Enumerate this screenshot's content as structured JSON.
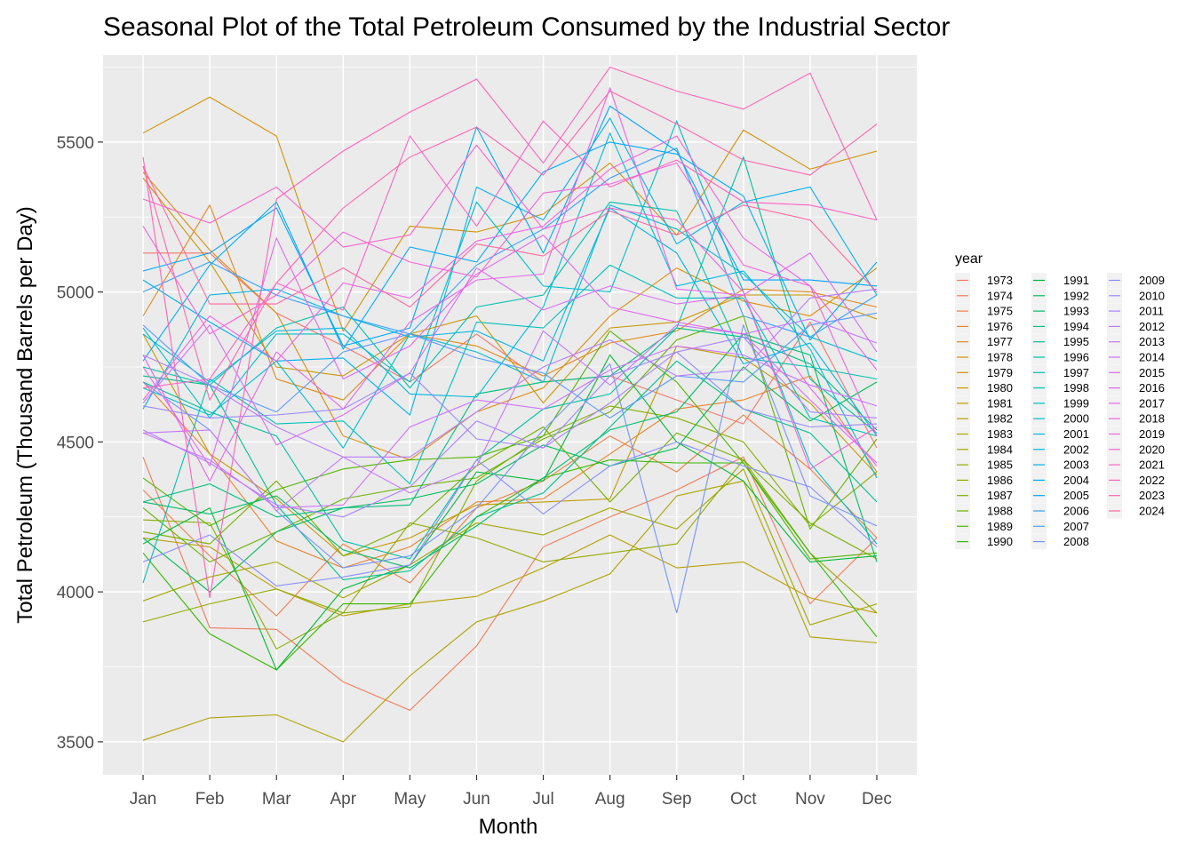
{
  "chart_data": {
    "type": "line",
    "title": "Seasonal Plot of the Total Petroleum Consumed by the Industrial Sector",
    "xlabel": "Month",
    "ylabel": "Total Petroleum (Thousand Barrels per Day)",
    "categories": [
      "Jan",
      "Feb",
      "Mar",
      "Apr",
      "May",
      "Jun",
      "Jul",
      "Aug",
      "Sep",
      "Oct",
      "Nov",
      "Dec"
    ],
    "ylim": [
      3390,
      5790
    ],
    "yticks": [
      3500,
      4000,
      4500,
      5000,
      5500
    ],
    "legend_title": "year",
    "legend_position": "right",
    "grid": true,
    "panel_background": "#ebebeb",
    "series": [
      {
        "name": "1973",
        "color": "#f8766d",
        "values": [
          5130,
          5130,
          4930,
          4820,
          4700,
          4860,
          4700,
          4720,
          4640,
          4560,
          4900,
          4480
        ]
      },
      {
        "name": "1974",
        "color": "#f47a58",
        "values": [
          4450,
          3880,
          3875,
          3700,
          3605,
          3820,
          4150,
          4250,
          4340,
          4450,
          3960,
          4180
        ]
      },
      {
        "name": "1975",
        "color": "#ef7f46",
        "values": [
          4340,
          4120,
          3920,
          4160,
          4030,
          4280,
          4370,
          4520,
          4400,
          4590,
          4410,
          4180
        ]
      },
      {
        "name": "1976",
        "color": "#e9842d",
        "values": [
          4700,
          4460,
          4170,
          4080,
          4150,
          4300,
          4310,
          4460,
          4610,
          4640,
          4720,
          4400
        ]
      },
      {
        "name": "1977",
        "color": "#e3891c",
        "values": [
          4920,
          5290,
          4710,
          4640,
          4860,
          4820,
          4720,
          4830,
          4870,
          5010,
          5000,
          4950
        ]
      },
      {
        "name": "1978",
        "color": "#dc8e0e",
        "values": [
          5400,
          5140,
          4930,
          4520,
          4440,
          4600,
          4680,
          4920,
          5080,
          4970,
          4920,
          5080
        ]
      },
      {
        "name": "1979",
        "color": "#d49205",
        "values": [
          5530,
          5650,
          5520,
          4870,
          5220,
          5200,
          5260,
          5430,
          5190,
          5540,
          5410,
          5470
        ]
      },
      {
        "name": "1980",
        "color": "#cb9700",
        "values": [
          5380,
          5100,
          4750,
          4720,
          4860,
          4920,
          4630,
          4880,
          4900,
          4990,
          4990,
          4910
        ]
      },
      {
        "name": "1981",
        "color": "#c29b00",
        "values": [
          4860,
          4460,
          4310,
          4120,
          4180,
          4290,
          4300,
          4310,
          4820,
          4780,
          4630,
          4390
        ]
      },
      {
        "name": "1982",
        "color": "#b89f00",
        "values": [
          4180,
          4150,
          4010,
          3920,
          3960,
          3985,
          4080,
          4190,
          4080,
          4100,
          3980,
          3930
        ]
      },
      {
        "name": "1983",
        "color": "#ada300",
        "values": [
          3505,
          3580,
          3590,
          3500,
          3720,
          3900,
          3970,
          4060,
          4320,
          4370,
          3850,
          3830
        ]
      },
      {
        "name": "1984",
        "color": "#a2a600",
        "values": [
          3970,
          4050,
          4100,
          3980,
          4090,
          4230,
          4190,
          4280,
          4210,
          4410,
          3890,
          3960
        ]
      },
      {
        "name": "1985",
        "color": "#95aa00",
        "values": [
          3900,
          3960,
          4010,
          3930,
          4230,
          4180,
          4100,
          4130,
          4160,
          4440,
          4130,
          3930
        ]
      },
      {
        "name": "1986",
        "color": "#88ad00",
        "values": [
          4240,
          4230,
          3810,
          3930,
          3950,
          4370,
          4520,
          4620,
          4580,
          4500,
          4220,
          4400
        ]
      },
      {
        "name": "1987",
        "color": "#79b000",
        "values": [
          4200,
          4160,
          4370,
          4120,
          4220,
          4420,
          4550,
          4300,
          4530,
          4440,
          4230,
          4110
        ]
      },
      {
        "name": "1988",
        "color": "#68b300",
        "values": [
          4280,
          4100,
          4200,
          4310,
          4350,
          4380,
          4510,
          4600,
          4840,
          4920,
          4210,
          4510
        ]
      },
      {
        "name": "1989",
        "color": "#53b600",
        "values": [
          4380,
          4220,
          4340,
          4410,
          4440,
          4450,
          4520,
          4870,
          4700,
          4430,
          4110,
          4130
        ]
      },
      {
        "name": "1990",
        "color": "#37b800",
        "values": [
          4130,
          3860,
          3740,
          3960,
          3960,
          4250,
          4380,
          4440,
          4430,
          4430,
          4130,
          3850
        ]
      },
      {
        "name": "1991",
        "color": "#00ba38",
        "values": [
          4160,
          4280,
          3740,
          4010,
          4090,
          4400,
          4370,
          4790,
          4500,
          4370,
          4100,
          4120
        ]
      },
      {
        "name": "1992",
        "color": "#00bc56",
        "values": [
          4180,
          4000,
          4200,
          4280,
          4310,
          4360,
          4490,
          4420,
          4480,
          4750,
          4570,
          4700
        ]
      },
      {
        "name": "1993",
        "color": "#00bd6c",
        "values": [
          4300,
          4260,
          4320,
          4140,
          4080,
          4220,
          4380,
          4540,
          4600,
          4860,
          4790,
          4100
        ]
      },
      {
        "name": "1994",
        "color": "#00bf7f",
        "values": [
          4300,
          4360,
          4250,
          4280,
          4290,
          4660,
          4700,
          4720,
          4880,
          4850,
          4760,
          4540
        ]
      },
      {
        "name": "1995",
        "color": "#00c08f",
        "values": [
          4720,
          4690,
          4290,
          4040,
          4070,
          4250,
          4330,
          4550,
          4770,
          4610,
          4530,
          4300
        ]
      },
      {
        "name": "1996",
        "color": "#00c09f",
        "values": [
          4700,
          4600,
          4520,
          4170,
          4110,
          4440,
          4610,
          4660,
          4880,
          5450,
          4710,
          4530
        ]
      },
      {
        "name": "1997",
        "color": "#00c1ad",
        "values": [
          4750,
          4690,
          4880,
          4950,
          4680,
          4950,
          4990,
          5300,
          5270,
          4780,
          4750,
          4710
        ]
      },
      {
        "name": "1998",
        "color": "#00c0bb",
        "values": [
          4030,
          4710,
          4560,
          4570,
          4360,
          4900,
          4880,
          5090,
          4980,
          4980,
          4580,
          4520
        ]
      },
      {
        "name": "1999",
        "color": "#00bfc8",
        "values": [
          4880,
          4580,
          4860,
          4860,
          4700,
          5300,
          5020,
          5000,
          5570,
          5000,
          4430,
          4160
        ]
      },
      {
        "name": "2000",
        "color": "#00bdd4",
        "values": [
          4680,
          4590,
          4770,
          4480,
          4860,
          4800,
          4700,
          5290,
          5210,
          5060,
          4850,
          4770
        ]
      },
      {
        "name": "2001",
        "color": "#00bade",
        "values": [
          4860,
          4700,
          4870,
          4880,
          4660,
          4650,
          4950,
          5530,
          5020,
          5070,
          4810,
          4380
        ]
      },
      {
        "name": "2002",
        "color": "#00b6e8",
        "values": [
          4610,
          4990,
          5010,
          4920,
          4850,
          4870,
          4770,
          5280,
          5130,
          4760,
          4830,
          4520
        ]
      },
      {
        "name": "2003",
        "color": "#00b1f1",
        "values": [
          5040,
          4900,
          4770,
          4780,
          4590,
          5350,
          5240,
          5580,
          5160,
          5300,
          5350,
          4990
        ]
      },
      {
        "name": "2004",
        "color": "#00acf9",
        "values": [
          4770,
          5090,
          5300,
          4810,
          5150,
          5100,
          5400,
          5500,
          5460,
          5320,
          4840,
          5100
        ]
      },
      {
        "name": "2005",
        "color": "#00a5ff",
        "values": [
          5070,
          5130,
          5280,
          4820,
          4880,
          5550,
          5130,
          5620,
          5470,
          5040,
          5040,
          5020
        ]
      },
      {
        "name": "2006",
        "color": "#35a2ff",
        "values": [
          5000,
          5100,
          4990,
          4920,
          4860,
          5090,
          5210,
          5380,
          5480,
          4920,
          4850,
          4990
        ]
      },
      {
        "name": "2007",
        "color": "#5b9bff",
        "values": [
          4890,
          4690,
          4600,
          4800,
          4860,
          4780,
          4730,
          4580,
          4720,
          4700,
          4890,
          4930
        ]
      },
      {
        "name": "2008",
        "color": "#7594ff",
        "values": [
          4700,
          4540,
          4270,
          4080,
          4120,
          4280,
          4540,
          4760,
          3930,
          4890,
          4320,
          4220
        ]
      },
      {
        "name": "2009",
        "color": "#8a8eff",
        "values": [
          4100,
          4190,
          4020,
          4050,
          4090,
          4440,
          4260,
          4420,
          4500,
          4420,
          4350,
          4150
        ]
      },
      {
        "name": "2010",
        "color": "#9b88ff",
        "values": [
          4620,
          4580,
          4590,
          4610,
          4730,
          4510,
          4480,
          4720,
          4800,
          4610,
          4550,
          4560
        ]
      },
      {
        "name": "2011",
        "color": "#aa82ff",
        "values": [
          4540,
          4430,
          4290,
          4250,
          4350,
          4570,
          4480,
          4630,
          4800,
          4850,
          4600,
          4580
        ]
      },
      {
        "name": "2012",
        "color": "#b77dff",
        "values": [
          4790,
          4690,
          4550,
          4450,
          4450,
          4600,
          4750,
          4840,
          4720,
          4740,
          4980,
          5010
        ]
      },
      {
        "name": "2013",
        "color": "#c378ff",
        "values": [
          4530,
          4540,
          4270,
          4450,
          4330,
          4420,
          4870,
          4690,
          4890,
          4860,
          4910,
          4830
        ]
      },
      {
        "name": "2014",
        "color": "#cd73fe",
        "values": [
          4530,
          4440,
          4280,
          4290,
          4550,
          4640,
          4610,
          4740,
          4820,
          4790,
          4690,
          4620
        ]
      },
      {
        "name": "2015",
        "color": "#d76ef9",
        "values": [
          4630,
          4890,
          4490,
          4590,
          4730,
          5080,
          4940,
          5020,
          4960,
          4990,
          5130,
          4800
        ]
      },
      {
        "name": "2016",
        "color": "#e16af2",
        "values": [
          4750,
          4420,
          5180,
          4710,
          4820,
          5060,
          5190,
          4950,
          4900,
          4860,
          4640,
          4430
        ]
      },
      {
        "name": "2017",
        "color": "#e967eb",
        "values": [
          4790,
          4370,
          4800,
          4610,
          4900,
          5040,
          5060,
          5680,
          5010,
          4990,
          4680,
          4420
        ]
      },
      {
        "name": "2018",
        "color": "#f065e3",
        "values": [
          4640,
          4920,
          4770,
          5030,
          4980,
          5170,
          5220,
          5410,
          5520,
          5180,
          5020,
          4520
        ]
      },
      {
        "name": "2019",
        "color": "#f564da",
        "values": [
          5220,
          4860,
          4990,
          5200,
          5100,
          5050,
          5330,
          5360,
          5430,
          5090,
          5020,
          4740
        ]
      },
      {
        "name": "2020",
        "color": "#fa63d0",
        "values": [
          5310,
          5230,
          5350,
          5150,
          5190,
          5490,
          5210,
          5280,
          5240,
          5000,
          4410,
          4550
        ]
      },
      {
        "name": "2021",
        "color": "#fd63c5",
        "values": [
          4680,
          4710,
          5030,
          4940,
          5520,
          5220,
          5570,
          5350,
          5440,
          5300,
          5290,
          5240
        ]
      },
      {
        "name": "2022",
        "color": "#ff64b9",
        "values": [
          5450,
          3980,
          5310,
          5470,
          5600,
          5710,
          5430,
          5750,
          5670,
          5610,
          5730,
          5240
        ]
      },
      {
        "name": "2023",
        "color": "#ff65ad",
        "values": [
          5420,
          4640,
          5030,
          5280,
          5450,
          5550,
          5390,
          5670,
          5560,
          5440,
          5390,
          5560
        ]
      },
      {
        "name": "2024",
        "color": "#ff67a0",
        "values": [
          5420,
          4960,
          4960,
          5080,
          4950,
          5160,
          5120,
          5270,
          5190,
          5290,
          5240,
          5000
        ]
      }
    ]
  }
}
